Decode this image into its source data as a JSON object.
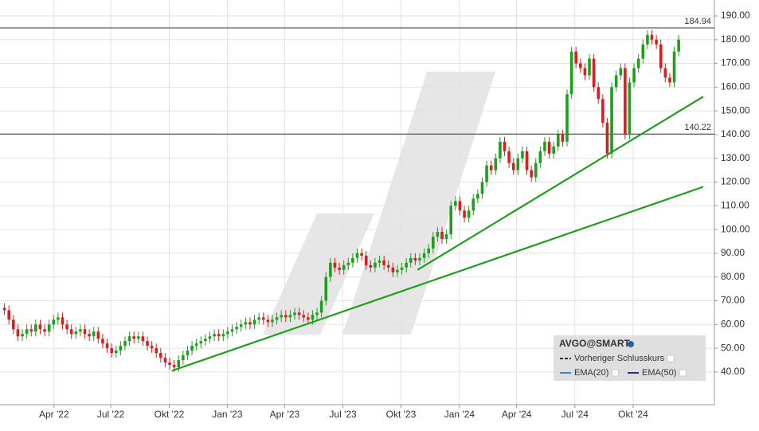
{
  "chart_data": {
    "type": "candlestick",
    "xlim": [
      0,
      160
    ],
    "xticks": [
      {
        "value": 12.1,
        "label": "Apr '22"
      },
      {
        "value": 24.8,
        "label": "Jul '22"
      },
      {
        "value": 37.9,
        "label": "Okt '22"
      },
      {
        "value": 50.9,
        "label": "Jan '23"
      },
      {
        "value": 63.75,
        "label": "Apr '23"
      },
      {
        "value": 76.8,
        "label": "Jul '23"
      },
      {
        "value": 89.8,
        "label": "Okt '23"
      },
      {
        "value": 102.9,
        "label": "Jan '24"
      },
      {
        "value": 115.7,
        "label": "Apr '24"
      },
      {
        "value": 128.75,
        "label": "Jul '24"
      },
      {
        "value": 141.8,
        "label": "Okt '24"
      }
    ],
    "ylim": [
      26.2,
      196.7
    ],
    "yticks": [
      {
        "value": 40,
        "label": "40.00"
      },
      {
        "value": 50,
        "label": "50.00"
      },
      {
        "value": 60,
        "label": "60.00"
      },
      {
        "value": 70,
        "label": "70.00"
      },
      {
        "value": 80,
        "label": "80.00"
      },
      {
        "value": 90,
        "label": "90.00"
      },
      {
        "value": 100,
        "label": "100.00"
      },
      {
        "value": 110,
        "label": "110.00"
      },
      {
        "value": 120,
        "label": "120.00"
      },
      {
        "value": 130,
        "label": "130.00"
      },
      {
        "value": 140,
        "label": "140.00"
      },
      {
        "value": 150,
        "label": "150.00"
      },
      {
        "value": 160,
        "label": "160.00"
      },
      {
        "value": 170,
        "label": "170.00"
      },
      {
        "value": 180,
        "label": "180.00"
      },
      {
        "value": 190,
        "label": "190.00"
      }
    ],
    "grid": true,
    "series": [
      {
        "name": "AVGO@SMART",
        "up_color": "#1f9e1f",
        "down_color": "#d42020",
        "open": [
          67,
          66,
          62,
          58,
          55,
          56,
          58,
          57,
          60,
          58,
          57,
          60,
          62,
          63,
          60,
          58,
          56,
          57,
          58,
          56,
          55,
          57,
          54,
          52,
          50,
          48,
          49,
          51,
          53,
          55,
          54,
          55,
          53,
          51,
          50,
          48,
          46,
          44,
          43,
          42,
          45,
          47,
          49,
          51,
          52,
          53,
          54,
          55,
          56,
          55,
          56,
          57,
          58,
          59,
          60,
          61,
          60,
          62,
          63,
          62,
          61,
          62,
          63,
          64,
          63,
          64,
          65,
          64,
          63,
          62,
          64,
          65,
          70,
          80,
          86,
          84,
          83,
          85,
          86,
          88,
          90,
          89,
          85,
          84,
          86,
          87,
          85,
          84,
          82,
          83,
          84,
          86,
          88,
          87,
          88,
          90,
          92,
          97,
          99,
          96,
          98,
          110,
          112,
          108,
          105,
          108,
          113,
          115,
          120,
          127,
          125,
          130,
          137,
          133,
          128,
          125,
          130,
          133,
          125,
          122,
          128,
          133,
          137,
          132,
          135,
          140,
          137,
          157,
          175,
          170,
          168,
          165,
          172,
          160,
          155,
          145,
          132,
          160,
          165,
          168,
          140,
          162,
          168,
          172,
          178,
          182,
          180,
          178,
          168,
          164,
          162,
          175
        ],
        "high": [
          69,
          68,
          64,
          60,
          58,
          60,
          60,
          62,
          62,
          60,
          62,
          64,
          65,
          65,
          62,
          60,
          59,
          60,
          60,
          58,
          59,
          59,
          56,
          54,
          52,
          51,
          53,
          55,
          57,
          57,
          57,
          57,
          55,
          53,
          52,
          50,
          48,
          46,
          45,
          47,
          49,
          51,
          53,
          54,
          55,
          56,
          57,
          58,
          58,
          58,
          59,
          60,
          61,
          62,
          63,
          63,
          64,
          65,
          65,
          64,
          64,
          65,
          66,
          66,
          66,
          67,
          67,
          66,
          65,
          66,
          67,
          72,
          82,
          88,
          88,
          86,
          87,
          88,
          90,
          92,
          92,
          91,
          87,
          88,
          89,
          89,
          87,
          86,
          85,
          86,
          88,
          90,
          90,
          90,
          92,
          94,
          99,
          101,
          101,
          100,
          112,
          114,
          114,
          110,
          110,
          115,
          117,
          122,
          129,
          129,
          132,
          139,
          139,
          135,
          130,
          132,
          135,
          135,
          127,
          130,
          135,
          139,
          139,
          137,
          142,
          142,
          159,
          177,
          177,
          172,
          170,
          174,
          174,
          162,
          157,
          147,
          162,
          167,
          170,
          170,
          164,
          170,
          174,
          180,
          184,
          184,
          182,
          180,
          170,
          166,
          177,
          182
        ],
        "low": [
          64,
          60,
          56,
          53,
          53,
          54,
          55,
          55,
          56,
          55,
          55,
          58,
          60,
          58,
          56,
          54,
          54,
          55,
          54,
          53,
          53,
          52,
          50,
          48,
          46,
          46,
          47,
          49,
          51,
          52,
          52,
          51,
          49,
          48,
          46,
          44,
          42,
          41,
          40,
          40,
          43,
          45,
          47,
          49,
          50,
          51,
          52,
          53,
          53,
          53,
          54,
          55,
          56,
          57,
          58,
          58,
          58,
          60,
          60,
          59,
          59,
          60,
          61,
          61,
          61,
          62,
          62,
          61,
          60,
          60,
          62,
          63,
          68,
          78,
          82,
          81,
          81,
          83,
          84,
          86,
          87,
          83,
          82,
          82,
          84,
          83,
          82,
          80,
          80,
          81,
          82,
          84,
          85,
          85,
          86,
          88,
          90,
          95,
          94,
          94,
          96,
          108,
          106,
          103,
          103,
          106,
          111,
          113,
          118,
          123,
          123,
          128,
          131,
          126,
          123,
          123,
          128,
          123,
          120,
          120,
          126,
          131,
          130,
          130,
          133,
          135,
          135,
          155,
          168,
          166,
          163,
          163,
          158,
          153,
          143,
          130,
          130,
          158,
          163,
          138,
          138,
          160,
          166,
          170,
          176,
          178,
          176,
          166,
          162,
          160,
          160,
          173
        ],
        "close": [
          66,
          62,
          58,
          55,
          56,
          58,
          57,
          60,
          58,
          57,
          60,
          62,
          63,
          60,
          58,
          56,
          57,
          58,
          56,
          55,
          57,
          54,
          52,
          50,
          48,
          49,
          51,
          53,
          55,
          54,
          55,
          53,
          51,
          50,
          48,
          46,
          44,
          43,
          42,
          45,
          47,
          49,
          51,
          52,
          53,
          54,
          55,
          56,
          55,
          56,
          57,
          58,
          59,
          60,
          61,
          60,
          62,
          63,
          62,
          61,
          62,
          63,
          64,
          63,
          64,
          65,
          64,
          63,
          62,
          64,
          65,
          70,
          80,
          86,
          84,
          83,
          85,
          86,
          88,
          90,
          89,
          85,
          84,
          86,
          87,
          85,
          84,
          82,
          83,
          84,
          86,
          88,
          87,
          88,
          90,
          92,
          97,
          99,
          96,
          98,
          110,
          112,
          108,
          105,
          108,
          113,
          115,
          120,
          127,
          125,
          130,
          137,
          133,
          128,
          125,
          130,
          133,
          125,
          122,
          128,
          133,
          137,
          132,
          135,
          140,
          137,
          157,
          175,
          170,
          168,
          165,
          172,
          160,
          155,
          145,
          132,
          160,
          165,
          168,
          140,
          162,
          168,
          172,
          178,
          182,
          180,
          178,
          168,
          164,
          162,
          175,
          180
        ]
      }
    ],
    "reference_lines": [
      {
        "value": 184.94,
        "color": "#333333"
      },
      {
        "value": 140.22,
        "color": "#333333"
      }
    ],
    "trendlines": [
      {
        "x": [
          38.5,
          157.5
        ],
        "values": [
          40.5,
          118
        ],
        "color": "#1ca01c"
      },
      {
        "x": [
          93.5,
          157.5
        ],
        "values": [
          83,
          156
        ],
        "color": "#1ca01c"
      }
    ],
    "legend_items": [
      {
        "name": "Vorheriger Schlusskurs",
        "color": "#333333",
        "dash": true
      },
      {
        "name": "EMA(20)",
        "color": "#2a8ad8",
        "dash": false
      },
      {
        "name": "EMA(50)",
        "color": "#1a30b0",
        "dash": false
      }
    ]
  }
}
